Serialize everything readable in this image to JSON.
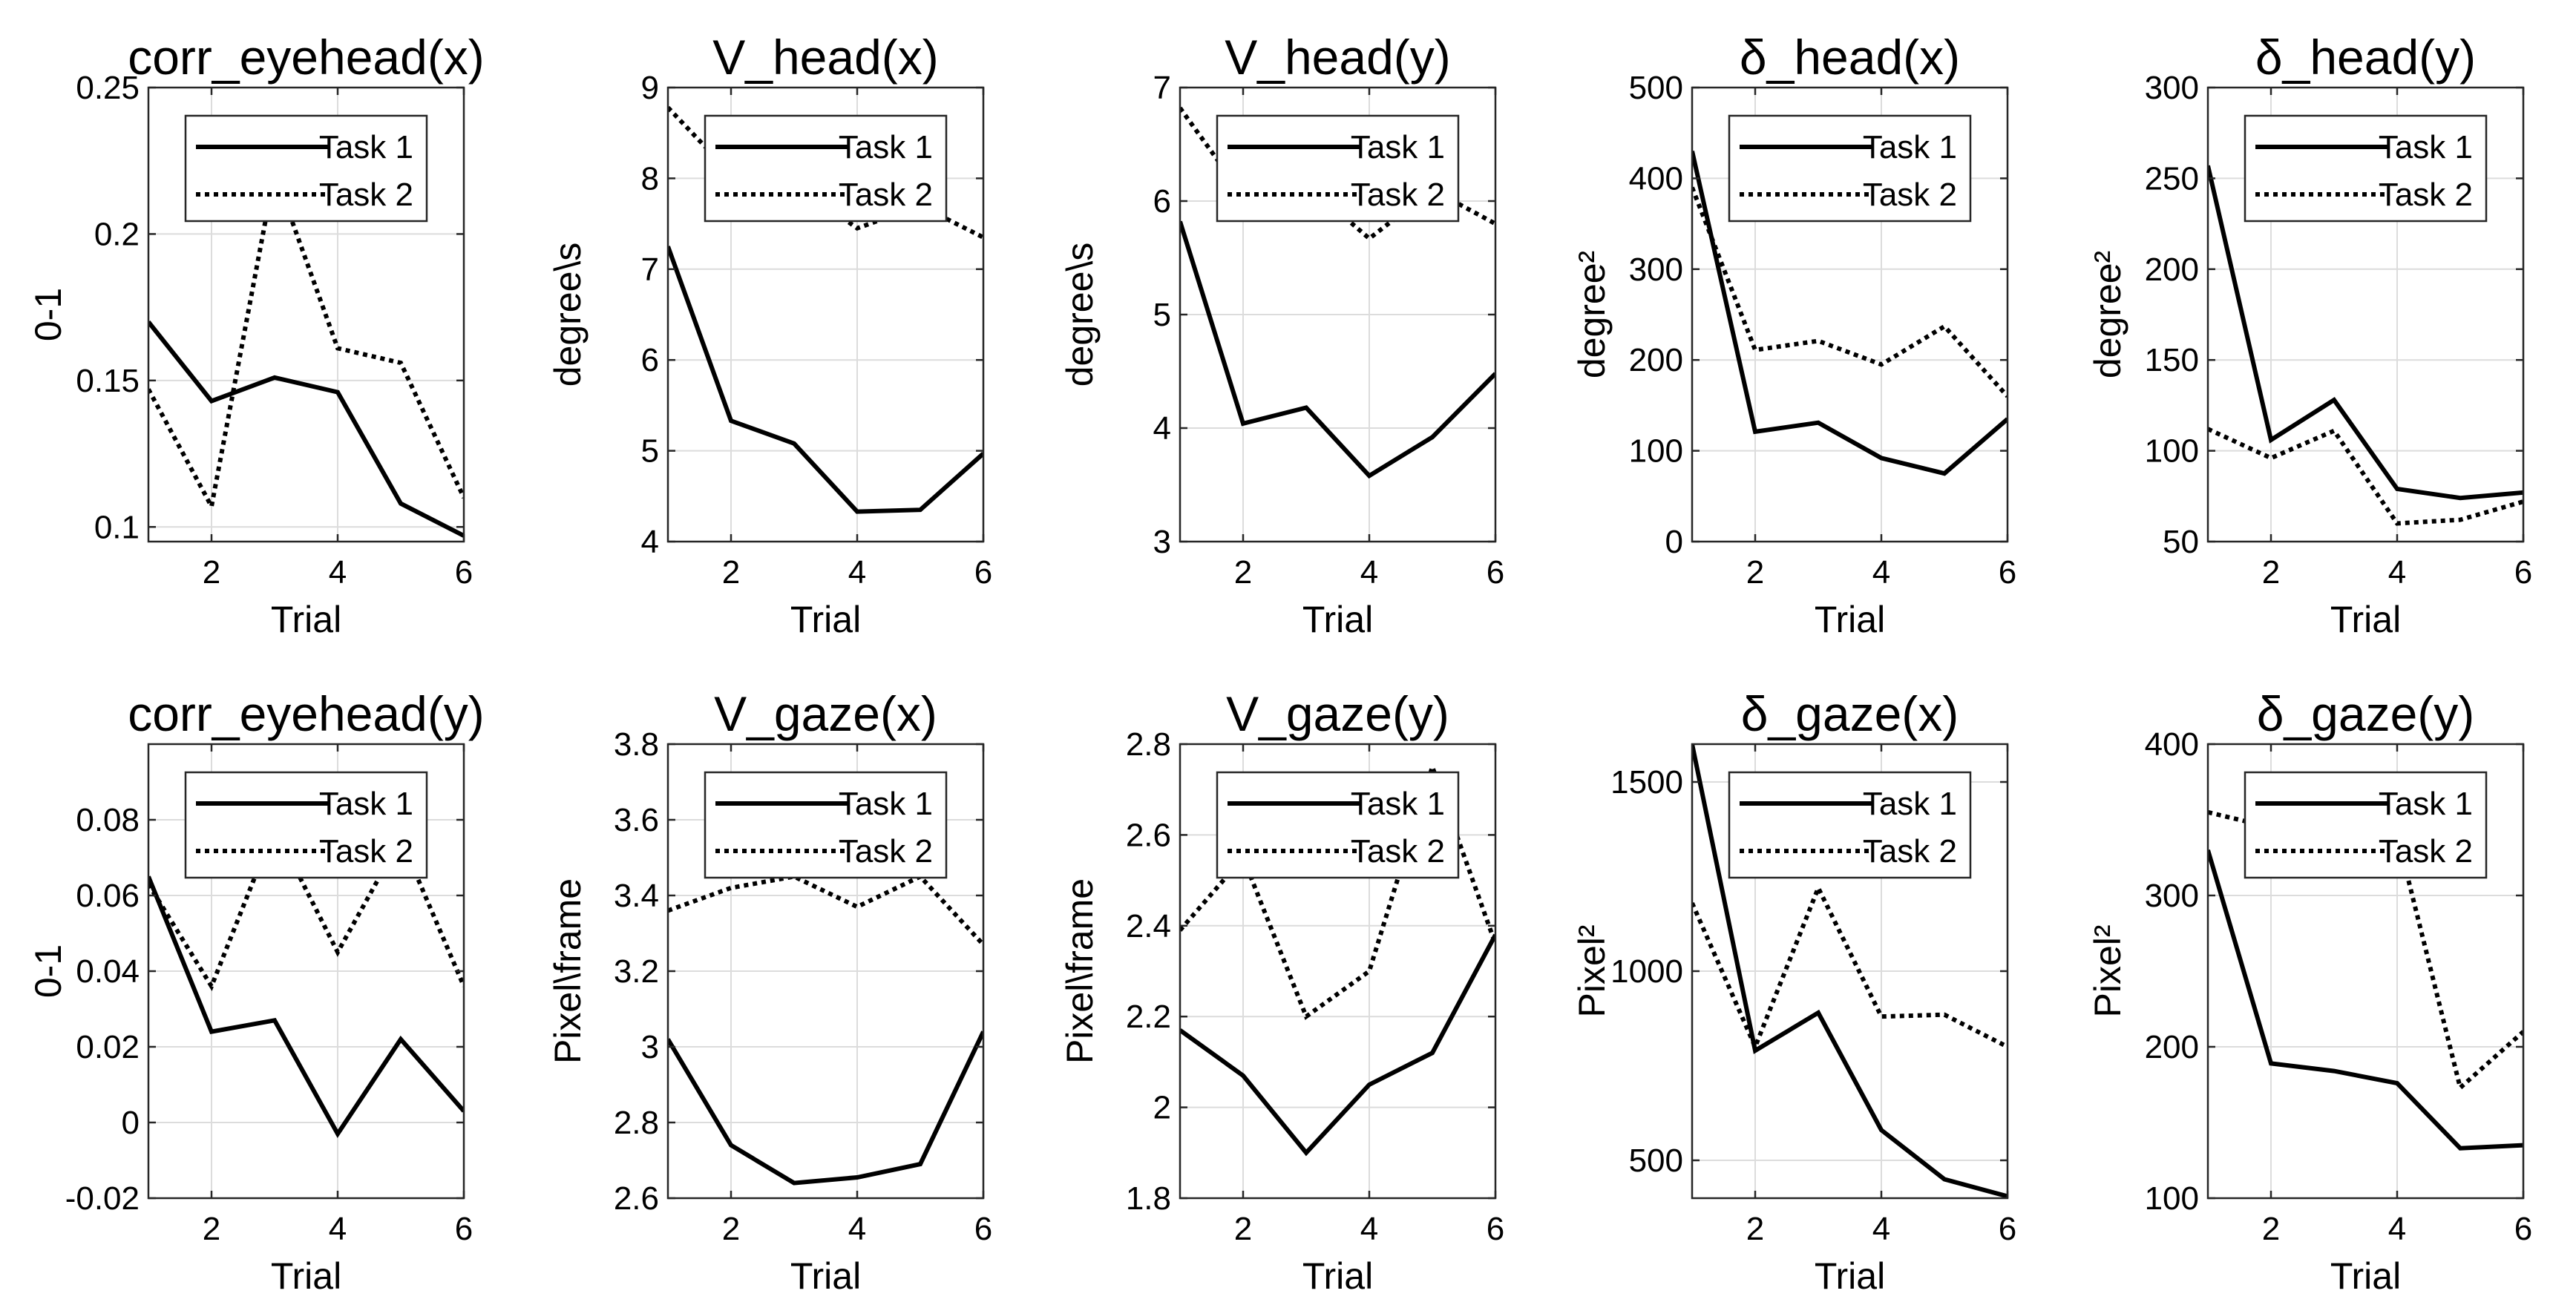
{
  "figure": {
    "background": "#ffffff",
    "line_color": "#000000",
    "grid_color": "#dcdcdc"
  },
  "chart_data": [
    {
      "type": "line",
      "title": "corr_eyehead(x)",
      "xlabel": "Trial",
      "ylabel": "0-1",
      "xlim": [
        1,
        6
      ],
      "ylim": [
        0.095,
        0.25
      ],
      "xticks": [
        2,
        4,
        6
      ],
      "xtick_labels": [
        "2",
        "4",
        "6"
      ],
      "yticks": [
        0.1,
        0.15,
        0.2,
        0.25
      ],
      "ytick_labels": [
        "0.1",
        "0.15",
        "0.2",
        "0.25"
      ],
      "x": [
        1,
        2,
        3,
        4,
        5,
        6
      ],
      "legend": "top",
      "series": [
        {
          "name": "Task 1",
          "style": "solid",
          "values": [
            0.17,
            0.143,
            0.151,
            0.146,
            0.108,
            0.097
          ]
        },
        {
          "name": "Task 2",
          "style": "dotted",
          "values": [
            0.147,
            0.107,
            0.221,
            0.161,
            0.156,
            0.11
          ]
        }
      ]
    },
    {
      "type": "line",
      "title": "V_head(x)",
      "xlabel": "Trial",
      "ylabel": "degree\\s",
      "xlim": [
        1,
        6
      ],
      "ylim": [
        4,
        9
      ],
      "xticks": [
        2,
        4,
        6
      ],
      "xtick_labels": [
        "2",
        "4",
        "6"
      ],
      "yticks": [
        4,
        5,
        6,
        7,
        8,
        9
      ],
      "ytick_labels": [
        "4",
        "5",
        "6",
        "7",
        "8",
        "9"
      ],
      "x": [
        1,
        2,
        3,
        4,
        5,
        6
      ],
      "legend": "top",
      "series": [
        {
          "name": "Task 1",
          "style": "solid",
          "values": [
            7.25,
            5.33,
            5.08,
            4.33,
            4.35,
            4.97
          ]
        },
        {
          "name": "Task 2",
          "style": "dotted",
          "values": [
            8.78,
            8.05,
            7.95,
            7.45,
            7.7,
            7.35
          ]
        }
      ]
    },
    {
      "type": "line",
      "title": "V_head(y)",
      "xlabel": "Trial",
      "ylabel": "degree\\s",
      "xlim": [
        1,
        6
      ],
      "ylim": [
        3,
        7
      ],
      "xticks": [
        2,
        4,
        6
      ],
      "xtick_labels": [
        "2",
        "4",
        "6"
      ],
      "yticks": [
        3,
        4,
        5,
        6,
        7
      ],
      "ytick_labels": [
        "3",
        "4",
        "5",
        "6",
        "7"
      ],
      "x": [
        1,
        2,
        3,
        4,
        5,
        6
      ],
      "legend": "top",
      "series": [
        {
          "name": "Task 1",
          "style": "solid",
          "values": [
            5.82,
            4.04,
            4.18,
            3.58,
            3.92,
            4.48
          ]
        },
        {
          "name": "Task 2",
          "style": "dotted",
          "values": [
            6.82,
            6.05,
            6.15,
            5.67,
            6.1,
            5.8
          ]
        }
      ]
    },
    {
      "type": "line",
      "title": "δ_head(x)",
      "xlabel": "Trial",
      "ylabel": "degree²",
      "xlim": [
        1,
        6
      ],
      "ylim": [
        0,
        500
      ],
      "xticks": [
        2,
        4,
        6
      ],
      "xtick_labels": [
        "2",
        "4",
        "6"
      ],
      "yticks": [
        0,
        100,
        200,
        300,
        400,
        500
      ],
      "ytick_labels": [
        "0",
        "100",
        "200",
        "300",
        "400",
        "500"
      ],
      "x": [
        1,
        2,
        3,
        4,
        5,
        6
      ],
      "legend": "top",
      "series": [
        {
          "name": "Task 1",
          "style": "solid",
          "values": [
            430,
            121,
            131,
            92,
            75,
            135
          ]
        },
        {
          "name": "Task 2",
          "style": "dotted",
          "values": [
            390,
            211,
            221,
            195,
            237,
            160
          ]
        }
      ]
    },
    {
      "type": "line",
      "title": "δ_head(y)",
      "xlabel": "Trial",
      "ylabel": "degree²",
      "xlim": [
        1,
        6
      ],
      "ylim": [
        50,
        300
      ],
      "xticks": [
        2,
        4,
        6
      ],
      "xtick_labels": [
        "2",
        "4",
        "6"
      ],
      "yticks": [
        50,
        100,
        150,
        200,
        250,
        300
      ],
      "ytick_labels": [
        "50",
        "100",
        "150",
        "200",
        "250",
        "300"
      ],
      "x": [
        1,
        2,
        3,
        4,
        5,
        6
      ],
      "legend": "top",
      "series": [
        {
          "name": "Task 1",
          "style": "solid",
          "values": [
            257,
            106,
            128,
            79,
            74,
            77
          ]
        },
        {
          "name": "Task 2",
          "style": "dotted",
          "values": [
            112,
            96,
            111,
            60,
            62,
            72
          ]
        }
      ]
    },
    {
      "type": "line",
      "title": "corr_eyehead(y)",
      "xlabel": "Trial",
      "ylabel": "0-1",
      "xlim": [
        1,
        6
      ],
      "ylim": [
        -0.02,
        0.1
      ],
      "xticks": [
        2,
        4,
        6
      ],
      "xtick_labels": [
        "2",
        "4",
        "6"
      ],
      "yticks": [
        -0.02,
        0,
        0.02,
        0.04,
        0.06,
        0.08
      ],
      "ytick_labels": [
        "-0.02",
        "0",
        "0.02",
        "0.04",
        "0.06",
        "0.08"
      ],
      "x": [
        1,
        2,
        3,
        4,
        5,
        6
      ],
      "legend": "top",
      "series": [
        {
          "name": "Task 1",
          "style": "solid",
          "values": [
            0.065,
            0.024,
            0.027,
            -0.003,
            0.022,
            0.003
          ]
        },
        {
          "name": "Task 2",
          "style": "dotted",
          "values": [
            0.063,
            0.036,
            0.078,
            0.045,
            0.075,
            0.036
          ]
        }
      ]
    },
    {
      "type": "line",
      "title": "V_gaze(x)",
      "xlabel": "Trial",
      "ylabel": "Pixel\\frame",
      "xlim": [
        1,
        6
      ],
      "ylim": [
        2.6,
        3.8
      ],
      "xticks": [
        2,
        4,
        6
      ],
      "xtick_labels": [
        "2",
        "4",
        "6"
      ],
      "yticks": [
        2.6,
        2.8,
        3,
        3.2,
        3.4,
        3.6,
        3.8
      ],
      "ytick_labels": [
        "2.6",
        "2.8",
        "3",
        "3.2",
        "3.4",
        "3.6",
        "3.8"
      ],
      "x": [
        1,
        2,
        3,
        4,
        5,
        6
      ],
      "legend": "top",
      "series": [
        {
          "name": "Task 1",
          "style": "solid",
          "values": [
            3.02,
            2.74,
            2.64,
            2.655,
            2.69,
            3.04
          ]
        },
        {
          "name": "Task 2",
          "style": "dotted",
          "values": [
            3.36,
            3.42,
            3.45,
            3.37,
            3.45,
            3.27
          ]
        }
      ]
    },
    {
      "type": "line",
      "title": "V_gaze(y)",
      "xlabel": "Trial",
      "ylabel": "Pixel\\frame",
      "xlim": [
        1,
        6
      ],
      "ylim": [
        1.8,
        2.8
      ],
      "xticks": [
        2,
        4,
        6
      ],
      "xtick_labels": [
        "2",
        "4",
        "6"
      ],
      "yticks": [
        1.8,
        2,
        2.2,
        2.4,
        2.6,
        2.8
      ],
      "ytick_labels": [
        "1.8",
        "2",
        "2.2",
        "2.4",
        "2.6",
        "2.8"
      ],
      "x": [
        1,
        2,
        3,
        4,
        5,
        6
      ],
      "legend": "top",
      "series": [
        {
          "name": "Task 1",
          "style": "solid",
          "values": [
            2.17,
            2.07,
            1.9,
            2.05,
            2.12,
            2.38
          ]
        },
        {
          "name": "Task 2",
          "style": "dotted",
          "values": [
            2.39,
            2.55,
            2.2,
            2.3,
            2.75,
            2.36
          ]
        }
      ]
    },
    {
      "type": "line",
      "title": "δ_gaze(x)",
      "xlabel": "Trial",
      "ylabel": "Pixel²",
      "xlim": [
        1,
        6
      ],
      "ylim": [
        400,
        1600
      ],
      "xticks": [
        2,
        4,
        6
      ],
      "xtick_labels": [
        "2",
        "4",
        "6"
      ],
      "yticks": [
        500,
        1000,
        1500
      ],
      "ytick_labels": [
        "500",
        "1000",
        "1500"
      ],
      "x": [
        1,
        2,
        3,
        4,
        5,
        6
      ],
      "legend": "top",
      "series": [
        {
          "name": "Task 1",
          "style": "solid",
          "values": [
            1600,
            790,
            890,
            580,
            450,
            405
          ]
        },
        {
          "name": "Task 2",
          "style": "dotted",
          "values": [
            1180,
            800,
            1220,
            880,
            885,
            800
          ]
        }
      ]
    },
    {
      "type": "line",
      "title": "δ_gaze(y)",
      "xlabel": "Trial",
      "ylabel": "Pixel²",
      "xlim": [
        1,
        6
      ],
      "ylim": [
        100,
        400
      ],
      "xticks": [
        2,
        4,
        6
      ],
      "xtick_labels": [
        "2",
        "4",
        "6"
      ],
      "yticks": [
        100,
        200,
        300,
        400
      ],
      "ytick_labels": [
        "100",
        "200",
        "300",
        "400"
      ],
      "x": [
        1,
        2,
        3,
        4,
        5,
        6
      ],
      "legend": "top",
      "series": [
        {
          "name": "Task 1",
          "style": "solid",
          "values": [
            330,
            189,
            184,
            176,
            133,
            135
          ]
        },
        {
          "name": "Task 2",
          "style": "dotted",
          "values": [
            355,
            345,
            350,
            340,
            173,
            210
          ]
        }
      ]
    }
  ]
}
